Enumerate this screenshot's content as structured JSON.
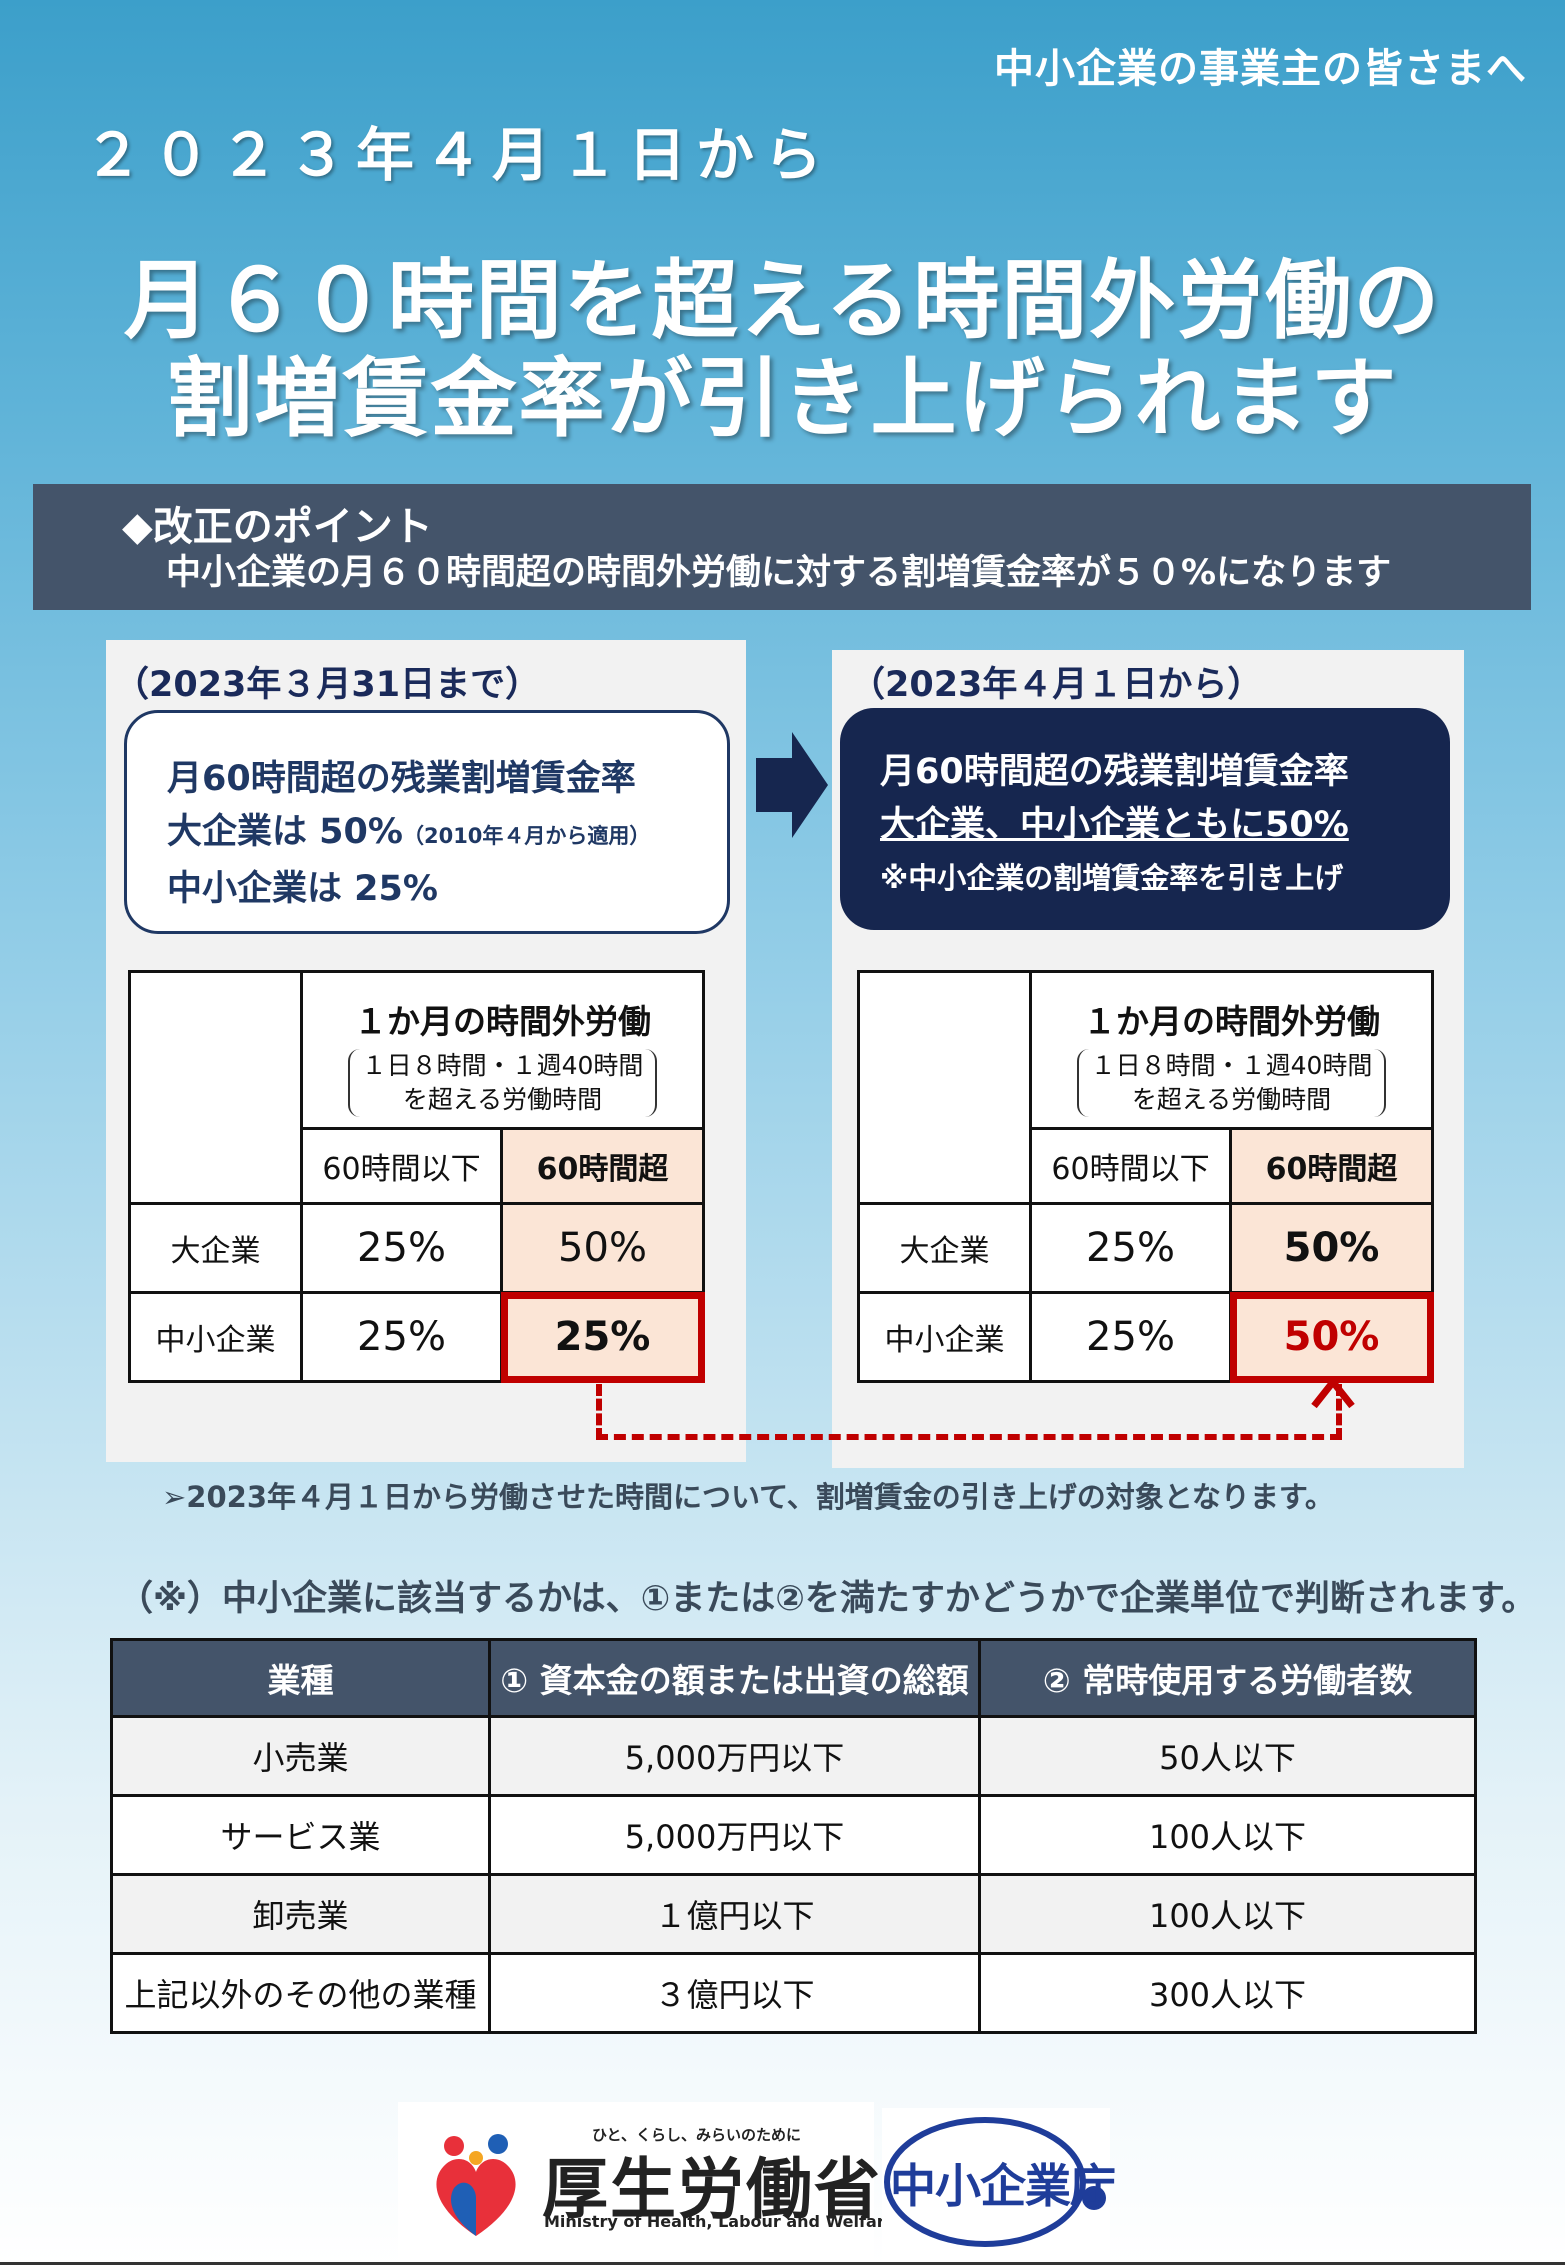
{
  "header": {
    "audience": "中小企業の事業主の皆さまへ",
    "date": "２０２３年４月１日から",
    "title_line1": "月６０時間を超える時間外労働の",
    "title_line2": "割増賃金率が引き上げられます"
  },
  "point": {
    "heading": "◆改正のポイント",
    "text": "中小企業の月６０時間超の時間外労働に対する割増賃金率が５０%になります"
  },
  "before": {
    "period": "（2023年３月31日まで）",
    "line1": "月60時間超の残業割増賃金率",
    "line2": "大企業は 50%",
    "line2_note": "（2010年４月から適用）",
    "line3": "中小企業は 25%"
  },
  "after": {
    "period": "（2023年４月１日から）",
    "line1": "月60時間超の残業割増賃金率",
    "line2": "大企業、中小企業ともに50%",
    "line3": "※中小企業の割増賃金率を引き上げ"
  },
  "rate_table": {
    "header_title": "１か月の時間外労働",
    "header_sub1": "１日８時間・１週40時間",
    "header_sub2": "を超える労働時間",
    "col_under": "60時間以下",
    "col_over": "60時間超",
    "row_large": "大企業",
    "row_sme": "中小企業",
    "before": {
      "large_under": "25%",
      "large_over": "50%",
      "sme_under": "25%",
      "sme_over": "25%"
    },
    "after": {
      "large_under": "25%",
      "large_over": "50%",
      "sme_under": "25%",
      "sme_over": "50%"
    }
  },
  "application_note": "➢2023年４月１日から労働させた時間について、割増賃金の引き上げの対象となります。",
  "definition_note": "（※）中小企業に該当するかは、①または②を満たすかどうかで企業単位で判断されます。",
  "size_table": {
    "headers": [
      "業種",
      "① 資本金の額または出資の総額",
      "② 常時使用する労働者数"
    ],
    "rows": [
      [
        "小売業",
        "5,000万円以下",
        "50人以下"
      ],
      [
        "サービス業",
        "5,000万円以下",
        "100人以下"
      ],
      [
        "卸売業",
        "１億円以下",
        "100人以下"
      ],
      [
        "上記以外のその他の業種",
        "３億円以下",
        "300人以下"
      ]
    ]
  },
  "logos": {
    "mhlw_slogan": "ひと、くらし、みらいのために",
    "mhlw_name": "厚生労働省",
    "mhlw_english": "Ministry of Health, Labour and Welfare",
    "sme_agency": "中小企業庁"
  },
  "colors": {
    "navy": "#16264f",
    "band": "#44546a",
    "highlight": "#fbe5d6",
    "alert_red": "#c00000"
  }
}
